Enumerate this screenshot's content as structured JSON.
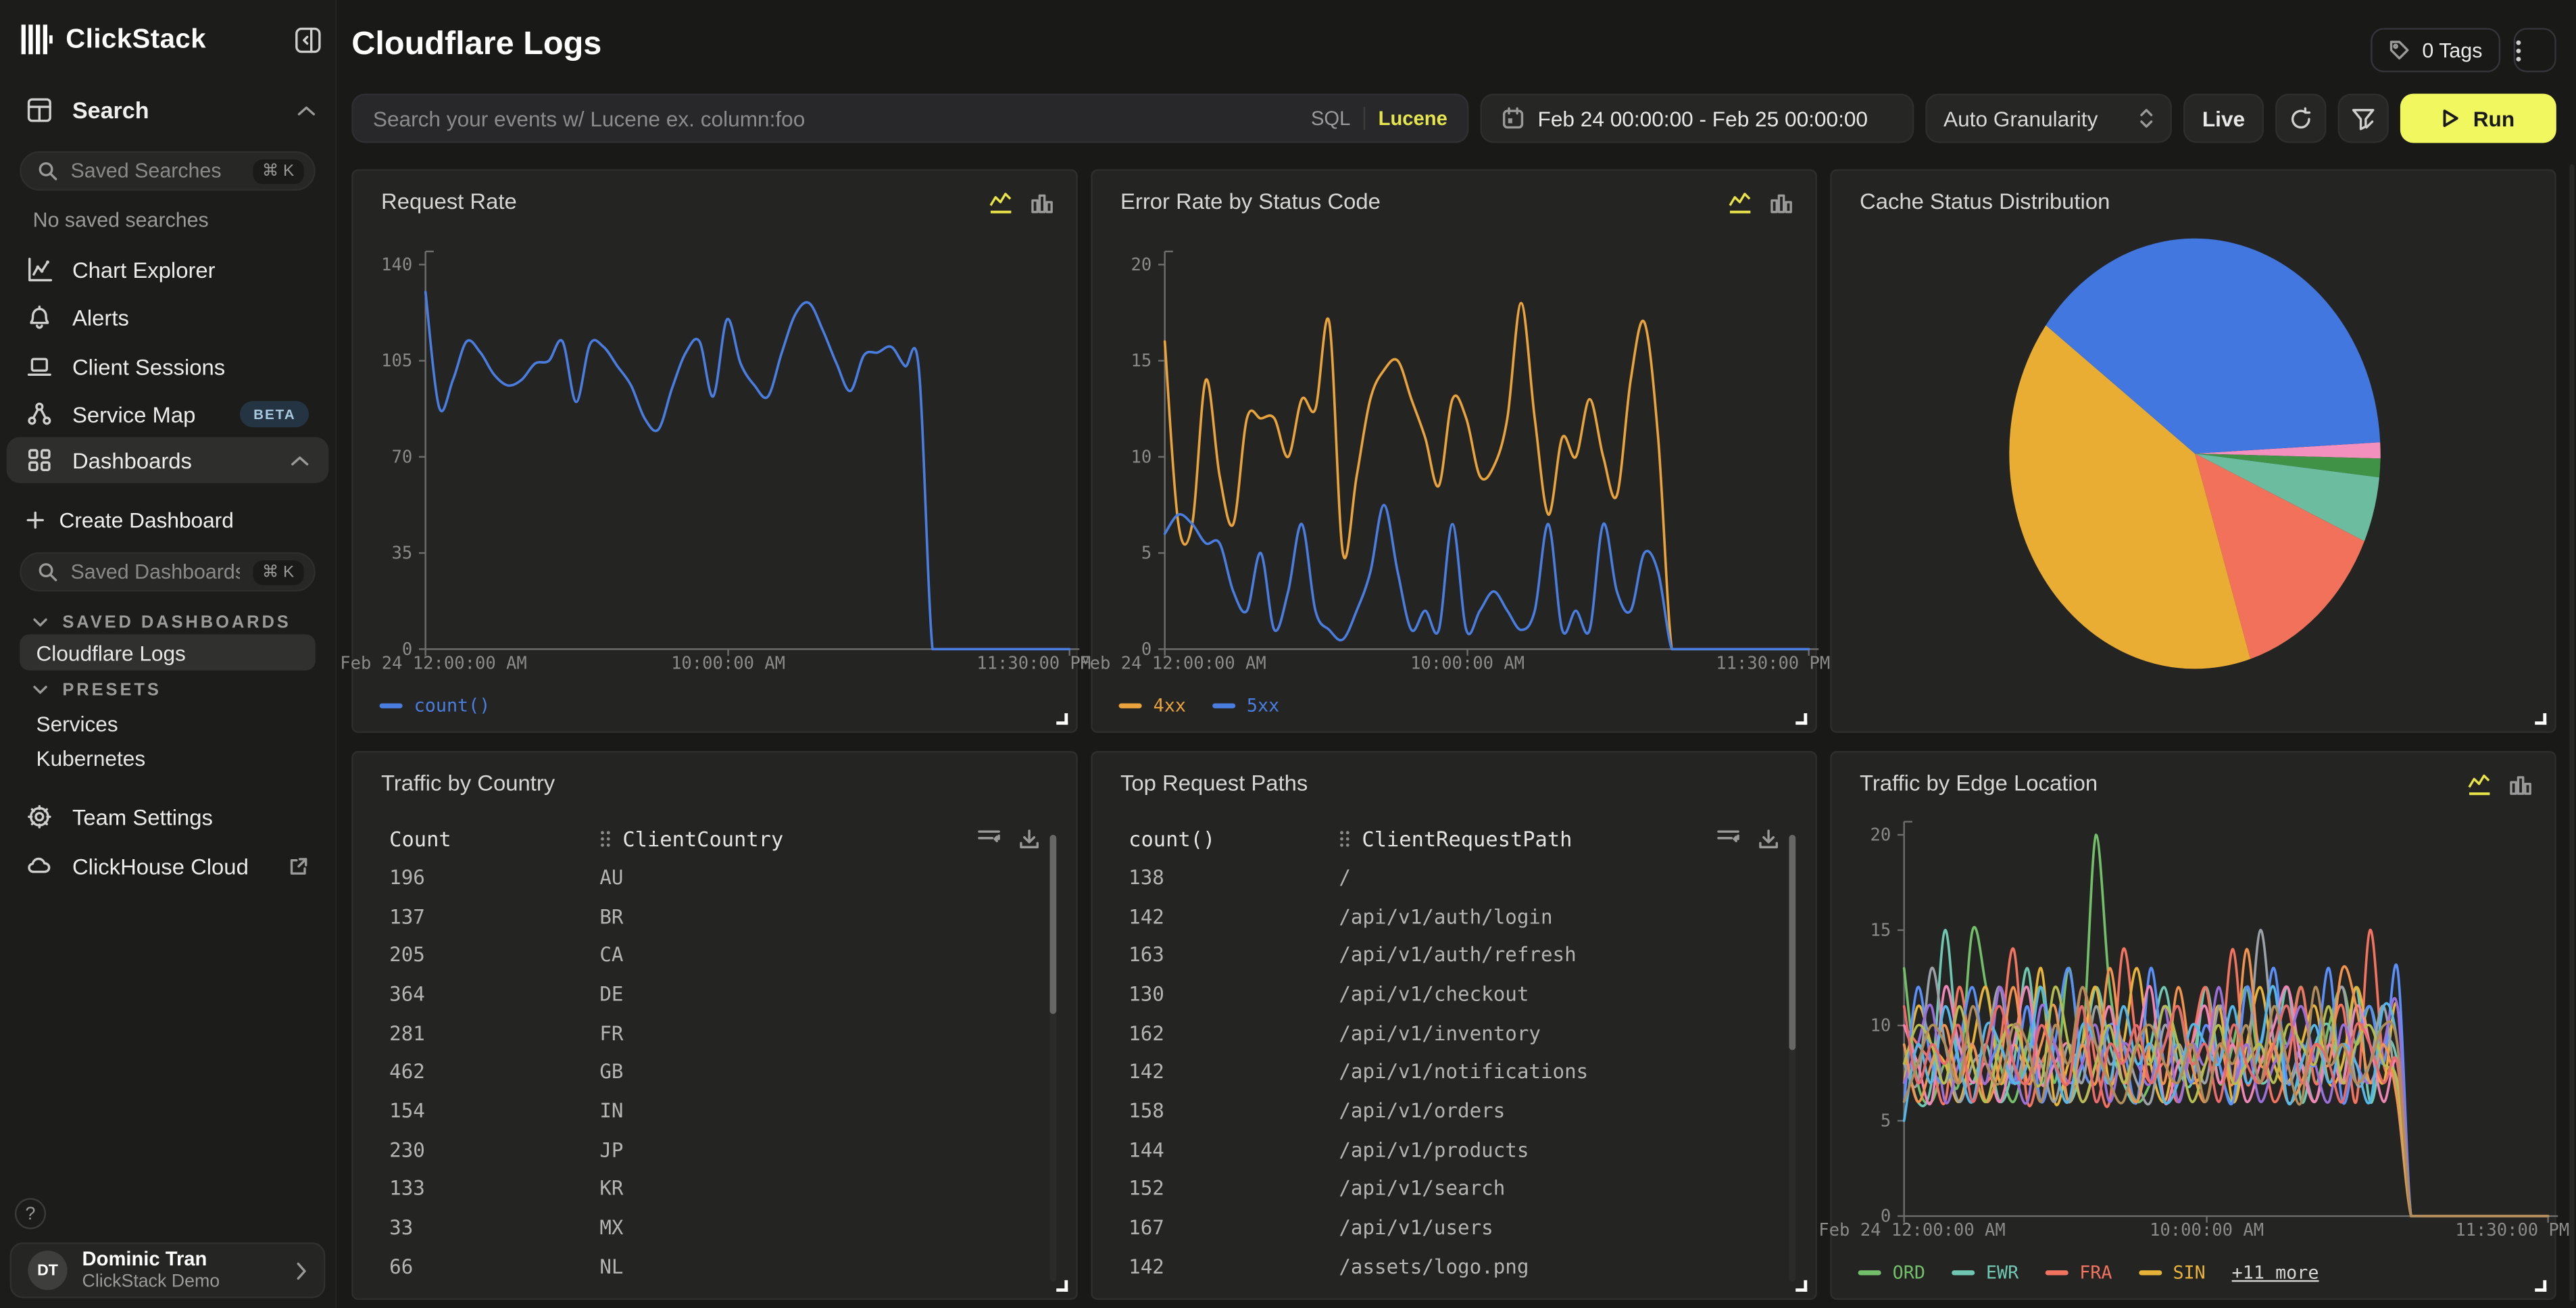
{
  "sidebar": {
    "brand": "ClickStack",
    "search_section_label": "Search",
    "saved_searches_placeholder": "Saved Searches",
    "shortcut": "⌘ K",
    "no_saved_searches": "No saved searches",
    "items": [
      {
        "label": "Chart Explorer"
      },
      {
        "label": "Alerts"
      },
      {
        "label": "Client Sessions"
      },
      {
        "label": "Service Map",
        "badge": "BETA"
      },
      {
        "label": "Dashboards"
      }
    ],
    "create_dashboard": "Create Dashboard",
    "saved_dashboards_placeholder": "Saved Dashboards",
    "sections": {
      "saved": "SAVED DASHBOARDS",
      "presets": "PRESETS"
    },
    "saved_dashboards": [
      {
        "label": "Cloudflare Logs"
      }
    ],
    "presets": [
      {
        "label": "Services"
      },
      {
        "label": "Kubernetes"
      }
    ],
    "team_settings": "Team Settings",
    "clickhouse_cloud": "ClickHouse Cloud",
    "help": "?",
    "user": {
      "initials": "DT",
      "name": "Dominic Tran",
      "org": "ClickStack Demo"
    }
  },
  "header": {
    "title": "Cloudflare Logs",
    "tags_label": "0 Tags"
  },
  "toolbar": {
    "search_placeholder": "Search your events w/ Lucene ex. column:foo",
    "sql_label": "SQL",
    "lucene_label": "Lucene",
    "date_range": "Feb 24 00:00:00 - Feb 25 00:00:00",
    "granularity": "Auto Granularity",
    "live_label": "Live",
    "run_label": "Run"
  },
  "colors": {
    "accent_yellow": "#f1f75f",
    "lucene_yellow": "#e5e54d",
    "axis": "#6e6e6e",
    "tick_text": "#8a8a8a"
  },
  "chart_data": [
    {
      "panel": "Request Rate",
      "type": "line",
      "ylim": [
        0,
        140
      ],
      "yticks": [
        0,
        35,
        70,
        105,
        140
      ],
      "x_labels": [
        "Feb 24 12:00:00 AM",
        "10:00:00 AM",
        "11:30:00 PM"
      ],
      "series": [
        {
          "name": "count()",
          "color": "#4a7de0",
          "values": [
            130,
            88,
            98,
            112,
            108,
            100,
            96,
            98,
            104,
            105,
            112,
            90,
            111,
            110,
            103,
            96,
            84,
            80,
            95,
            108,
            112,
            92,
            120,
            104,
            96,
            92,
            108,
            122,
            126,
            116,
            104,
            94,
            107,
            108,
            110,
            103,
            102,
            0,
            0,
            0,
            0,
            0,
            0,
            0,
            0,
            0,
            0,
            0
          ]
        }
      ]
    },
    {
      "panel": "Error Rate by Status Code",
      "type": "line",
      "ylim": [
        0,
        20
      ],
      "yticks": [
        0,
        5,
        10,
        15,
        20
      ],
      "x_labels": [
        "Feb 24 12:00:00 AM",
        "10:00:00 AM",
        "11:30:00 PM"
      ],
      "series": [
        {
          "name": "4xx",
          "color": "#e8a33d",
          "values": [
            16,
            6.5,
            6.5,
            14,
            9,
            6.5,
            12,
            12,
            12,
            10,
            13,
            12.5,
            17,
            5,
            9,
            13,
            14.5,
            15,
            13,
            11,
            8.5,
            13,
            12,
            9,
            9.5,
            12,
            18,
            12,
            7,
            11,
            10,
            13,
            10,
            8,
            14,
            17,
            11,
            0,
            0,
            0,
            0,
            0,
            0,
            0,
            0,
            0,
            0,
            0
          ]
        },
        {
          "name": "5xx",
          "color": "#4a7de0",
          "values": [
            6,
            7,
            6.5,
            5.5,
            5.5,
            3,
            2,
            5,
            1,
            3,
            6.5,
            2,
            1,
            0.5,
            2,
            4,
            7.5,
            4,
            1,
            2,
            1,
            6.5,
            1,
            2,
            3,
            2,
            1,
            2,
            6.5,
            1,
            2,
            1,
            6.5,
            3,
            2,
            5,
            4,
            0,
            0,
            0,
            0,
            0,
            0,
            0,
            0,
            0,
            0,
            0
          ]
        }
      ]
    },
    {
      "panel": "Cache Status Distribution",
      "type": "pie",
      "start_angle_deg": -3,
      "segments": [
        {
          "color": "#f490bd",
          "value": 1.2
        },
        {
          "color": "#3f9246",
          "value": 1.4
        },
        {
          "color": "#6cbda0",
          "value": 4.9
        },
        {
          "color": "#f1715b",
          "value": 13.5
        },
        {
          "color": "#e9ad33",
          "value": 40
        },
        {
          "color": "#4277e0",
          "value": 39
        }
      ]
    },
    {
      "panel": "Traffic by Country",
      "type": "table",
      "columns": [
        "Count",
        "ClientCountry"
      ],
      "rows": [
        [
          "196",
          "AU"
        ],
        [
          "137",
          "BR"
        ],
        [
          "205",
          "CA"
        ],
        [
          "364",
          "DE"
        ],
        [
          "281",
          "FR"
        ],
        [
          "462",
          "GB"
        ],
        [
          "154",
          "IN"
        ],
        [
          "230",
          "JP"
        ],
        [
          "133",
          "KR"
        ],
        [
          "33",
          "MX"
        ],
        [
          "66",
          "NL"
        ]
      ]
    },
    {
      "panel": "Top Request Paths",
      "type": "table",
      "columns": [
        "count()",
        "ClientRequestPath"
      ],
      "rows": [
        [
          "138",
          "/"
        ],
        [
          "142",
          "/api/v1/auth/login"
        ],
        [
          "163",
          "/api/v1/auth/refresh"
        ],
        [
          "130",
          "/api/v1/checkout"
        ],
        [
          "162",
          "/api/v1/inventory"
        ],
        [
          "142",
          "/api/v1/notifications"
        ],
        [
          "158",
          "/api/v1/orders"
        ],
        [
          "144",
          "/api/v1/products"
        ],
        [
          "152",
          "/api/v1/search"
        ],
        [
          "167",
          "/api/v1/users"
        ],
        [
          "142",
          "/assets/logo.png"
        ]
      ]
    },
    {
      "panel": "Traffic by Edge Location",
      "type": "line",
      "ylim": [
        0,
        20
      ],
      "yticks": [
        0,
        5,
        10,
        15,
        20
      ],
      "x_labels": [
        "Feb 24 12:00:00 AM",
        "10:00:00 AM",
        "11:30:00 PM"
      ],
      "legend_more": "+11 more",
      "series": [
        {
          "name": "ORD",
          "color": "#73bf69",
          "values": [
            13,
            7,
            6,
            8,
            7,
            15,
            12,
            8,
            6,
            9,
            12,
            7,
            13,
            9,
            20,
            12,
            8,
            6,
            7,
            9,
            11,
            8,
            12,
            7,
            9,
            12,
            8,
            11,
            9,
            12,
            7,
            10,
            12,
            9,
            11,
            8,
            7,
            0,
            0,
            0,
            0,
            0,
            0,
            0,
            0,
            0,
            0,
            0
          ]
        },
        {
          "name": "EWR",
          "color": "#6fc7b2",
          "values": [
            9,
            6,
            7,
            15,
            8,
            7,
            9,
            6,
            8,
            13,
            7,
            9,
            6,
            8,
            12,
            9,
            7,
            6,
            9,
            12,
            8,
            7,
            12,
            8,
            6,
            9,
            7,
            8,
            12,
            6,
            9,
            10,
            7,
            12,
            6,
            9,
            8,
            0,
            0,
            0,
            0,
            0,
            0,
            0,
            0,
            0,
            0,
            0
          ]
        },
        {
          "name": "FRA",
          "color": "#f2735f",
          "values": [
            10,
            9,
            8,
            6,
            12,
            8,
            7,
            9,
            14,
            6,
            8,
            9,
            7,
            12,
            8,
            6,
            14,
            9,
            7,
            8,
            6,
            9,
            12,
            8,
            14,
            7,
            9,
            6,
            8,
            12,
            7,
            9,
            11,
            6,
            15,
            8,
            7,
            0,
            0,
            0,
            0,
            0,
            0,
            0,
            0,
            0,
            0,
            0
          ]
        },
        {
          "name": "SIN",
          "color": "#e8b339",
          "values": [
            7,
            11,
            9,
            8,
            6,
            9,
            12,
            7,
            9,
            8,
            13,
            6,
            8,
            9,
            12,
            7,
            9,
            13,
            8,
            6,
            9,
            7,
            8,
            11,
            6,
            9,
            12,
            8,
            7,
            9,
            11,
            7,
            8,
            12,
            9,
            7,
            11,
            0,
            0,
            0,
            0,
            0,
            0,
            0,
            0,
            0,
            0,
            0
          ]
        },
        {
          "name": "",
          "color": "#5b8ff9",
          "values": [
            6,
            12,
            8,
            7,
            9,
            12,
            8,
            9,
            7,
            11,
            6,
            9,
            13,
            8,
            7,
            10,
            9,
            6,
            13,
            8,
            9,
            7,
            10,
            8,
            6,
            12,
            9,
            13,
            7,
            9,
            8,
            13,
            6,
            9,
            11,
            8,
            13,
            0,
            0,
            0,
            0,
            0,
            0,
            0,
            0,
            0,
            0,
            0
          ]
        },
        {
          "name": "",
          "color": "#9aa0a6",
          "values": [
            8,
            7,
            13,
            9,
            6,
            8,
            9,
            12,
            7,
            9,
            8,
            6,
            9,
            7,
            11,
            8,
            9,
            7,
            6,
            10,
            8,
            9,
            7,
            11,
            9,
            8,
            15,
            9,
            7,
            8,
            6,
            9,
            12,
            7,
            8,
            11,
            6,
            0,
            0,
            0,
            0,
            0,
            0,
            0,
            0,
            0,
            0,
            0
          ]
        },
        {
          "name": "",
          "color": "#ee85b5",
          "values": [
            10,
            8,
            6,
            12,
            9,
            7,
            8,
            6,
            9,
            12,
            7,
            8,
            9,
            6,
            8,
            11,
            7,
            9,
            12,
            6,
            8,
            9,
            11,
            7,
            9,
            6,
            8,
            10,
            12,
            8,
            6,
            9,
            7,
            11,
            9,
            6,
            8,
            0,
            0,
            0,
            0,
            0,
            0,
            0,
            0,
            0,
            0,
            0
          ]
        },
        {
          "name": "",
          "color": "#9a6fd8",
          "values": [
            7,
            9,
            11,
            6,
            8,
            9,
            7,
            12,
            8,
            6,
            11,
            9,
            7,
            8,
            10,
            6,
            9,
            8,
            7,
            11,
            6,
            9,
            8,
            12,
            7,
            9,
            6,
            8,
            9,
            11,
            8,
            6,
            10,
            8,
            7,
            9,
            11,
            0,
            0,
            0,
            0,
            0,
            0,
            0,
            0,
            0,
            0,
            0
          ]
        },
        {
          "name": "",
          "color": "#f0934e",
          "values": [
            9,
            6,
            8,
            10,
            7,
            9,
            6,
            8,
            12,
            7,
            9,
            11,
            6,
            9,
            7,
            13,
            8,
            6,
            9,
            7,
            12,
            8,
            6,
            9,
            7,
            14,
            8,
            9,
            6,
            7,
            9,
            8,
            13,
            11,
            7,
            9,
            6,
            0,
            0,
            0,
            0,
            0,
            0,
            0,
            0,
            0,
            0,
            0
          ]
        },
        {
          "name": "",
          "color": "#55b6e8",
          "values": [
            5,
            9,
            7,
            11,
            8,
            6,
            10,
            9,
            7,
            8,
            12,
            8,
            6,
            10,
            9,
            7,
            11,
            8,
            9,
            6,
            7,
            10,
            9,
            8,
            11,
            7,
            9,
            12,
            6,
            8,
            10,
            7,
            9,
            8,
            6,
            11,
            9,
            0,
            0,
            0,
            0,
            0,
            0,
            0,
            0,
            0,
            0,
            0
          ]
        },
        {
          "name": "",
          "color": "#b5bd4f",
          "values": [
            8,
            10,
            9,
            7,
            11,
            8,
            6,
            9,
            10,
            8,
            7,
            12,
            9,
            6,
            8,
            10,
            7,
            9,
            8,
            11,
            9,
            6,
            8,
            10,
            7,
            8,
            9,
            7,
            10,
            9,
            8,
            11,
            7,
            9,
            10,
            8,
            7,
            0,
            0,
            0,
            0,
            0,
            0,
            0,
            0,
            0,
            0,
            0
          ]
        },
        {
          "name": "",
          "color": "#e86a6a",
          "values": [
            11,
            7,
            9,
            8,
            10,
            6,
            9,
            11,
            8,
            7,
            10,
            8,
            7,
            11,
            6,
            9,
            8,
            10,
            7,
            9,
            11,
            8,
            9,
            6,
            10,
            8,
            7,
            9,
            11,
            7,
            9,
            8,
            6,
            10,
            9,
            7,
            8,
            0,
            0,
            0,
            0,
            0,
            0,
            0,
            0,
            0,
            0,
            0
          ]
        },
        {
          "name": "",
          "color": "#b08c5a",
          "values": [
            6,
            8,
            10,
            9,
            7,
            11,
            8,
            7,
            10,
            9,
            6,
            10,
            8,
            12,
            9,
            7,
            6,
            9,
            10,
            8,
            7,
            9,
            6,
            9,
            8,
            10,
            7,
            11,
            8,
            6,
            12,
            8,
            9,
            7,
            8,
            10,
            9,
            0,
            0,
            0,
            0,
            0,
            0,
            0,
            0,
            0,
            0,
            0
          ]
        }
      ]
    }
  ]
}
